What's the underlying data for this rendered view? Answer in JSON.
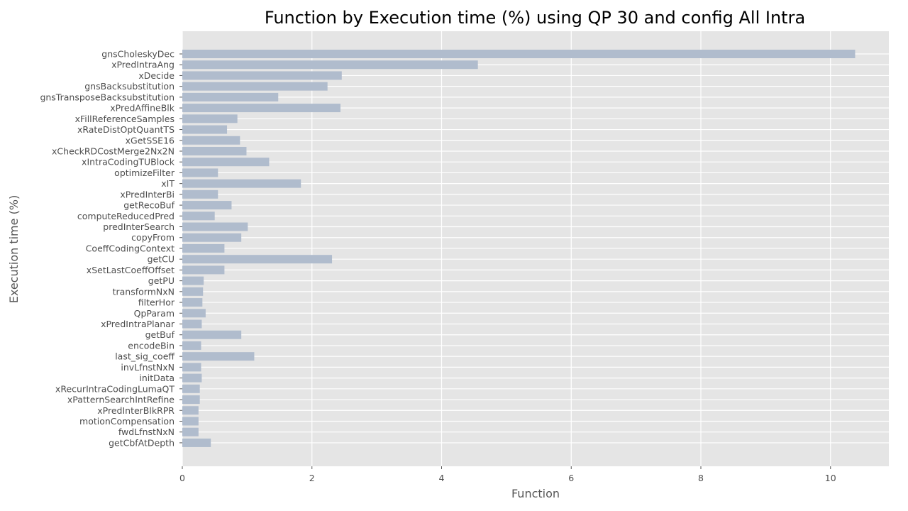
{
  "chart_data": {
    "type": "bar",
    "orientation": "horizontal",
    "title": "Function by Execution time (%) using QP 30 and config All Intra",
    "xlabel": "Function",
    "ylabel": "Execution time (%)",
    "xlim": [
      0,
      10.9
    ],
    "x_ticks": [
      0,
      2,
      4,
      6,
      8,
      10
    ],
    "grid": true,
    "colors": {
      "bar": "#b0bccd",
      "plot_bg": "#e5e5e5",
      "grid": "#ffffff"
    },
    "categories": [
      "gnsCholeskyDec",
      "xPredIntraAng",
      "xDecide",
      "gnsBacksubstitution",
      "gnsTransposeBacksubstitution",
      "xPredAffineBlk",
      "xFillReferenceSamples",
      "xRateDistOptQuantTS",
      "xGetSSE16",
      "xCheckRDCostMerge2Nx2N",
      "xIntraCodingTUBlock",
      "optimizeFilter",
      "xIT",
      "xPredInterBi",
      "getRecoBuf",
      "computeReducedPred",
      "predInterSearch",
      "copyFrom",
      "CoeffCodingContext",
      "getCU",
      "xSetLastCoeffOffset",
      "getPU",
      "transformNxN",
      "filterHor",
      "QpParam",
      "xPredIntraPlanar",
      "getBuf",
      "encodeBin",
      "last_sig_coeff",
      "invLfnstNxN",
      "initData",
      "xRecurIntraCodingLumaQT",
      "xPatternSearchIntRefine",
      "xPredInterBlkRPR",
      "motionCompensation",
      "fwdLfnstNxN",
      "getCbfAtDepth"
    ],
    "values": [
      10.38,
      4.56,
      2.46,
      2.24,
      1.48,
      2.44,
      0.85,
      0.69,
      0.89,
      0.99,
      1.34,
      0.55,
      1.83,
      0.55,
      0.76,
      0.5,
      1.01,
      0.91,
      0.65,
      2.31,
      0.65,
      0.33,
      0.32,
      0.31,
      0.36,
      0.3,
      0.91,
      0.29,
      1.11,
      0.29,
      0.3,
      0.27,
      0.27,
      0.25,
      0.25,
      0.25,
      0.44
    ]
  }
}
